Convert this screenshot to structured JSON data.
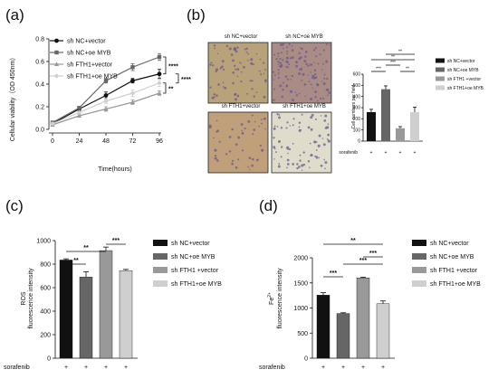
{
  "panels": {
    "a": "(a)",
    "b": "(b)",
    "c": "(c)",
    "d": "(d)"
  },
  "colors": {
    "sh_nc_vector": "#111111",
    "sh_nc_oe_myb": "#666666",
    "sh_fth1_vector": "#999999",
    "sh_fth1_oe_myb": "#cfcfcf",
    "micro_bg_a": "#b7a27a",
    "micro_bg_b": "#a98c86",
    "micro_bg_c": "#bfa07a",
    "micro_bg_d": "#dfdccc",
    "micro_dots": "#6a5a8a"
  },
  "chart_data": [
    {
      "panel": "a",
      "type": "line",
      "xlabel": "Time(hours)",
      "ylabel": "Cellular viability（OD 450nm）",
      "x": [
        0,
        24,
        48,
        72,
        96
      ],
      "xticks": [
        "0",
        "24",
        "48",
        "72",
        "96"
      ],
      "ylim": [
        0,
        0.8
      ],
      "yticks": [
        "0.0",
        "0.2",
        "0.4",
        "0.6",
        "0.8"
      ],
      "series": [
        {
          "name": "sh NC+vector",
          "values": [
            0.05,
            0.18,
            0.3,
            0.43,
            0.49
          ],
          "err": [
            0.01,
            0.02,
            0.03,
            0.02,
            0.04
          ],
          "marker": "circle"
        },
        {
          "name": "sh NC+oe MYB",
          "values": [
            0.06,
            0.19,
            0.43,
            0.55,
            0.64
          ],
          "err": [
            0.01,
            0.01,
            0.02,
            0.03,
            0.03
          ],
          "marker": "square"
        },
        {
          "name": "sh FTH1+vector",
          "values": [
            0.04,
            0.12,
            0.18,
            0.24,
            0.32
          ],
          "err": [
            0.01,
            0.01,
            0.02,
            0.02,
            0.02
          ],
          "marker": "triangle"
        },
        {
          "name": "sh FTH1+oe MYB",
          "values": [
            0.05,
            0.15,
            0.25,
            0.32,
            0.41
          ],
          "err": [
            0.01,
            0.01,
            0.02,
            0.03,
            0.03
          ],
          "marker": "diamond"
        }
      ],
      "significance": [
        "****",
        "**",
        "****"
      ]
    },
    {
      "panel": "b",
      "type": "bar",
      "ylabel": "Cell numbers per field",
      "categories": [
        "+",
        "+",
        "+",
        "+"
      ],
      "row_label": "sorafenib",
      "ylim": [
        0,
        600
      ],
      "yticks": [
        "0",
        "100",
        "200",
        "300",
        "400",
        "500",
        "600"
      ],
      "series": [
        {
          "name": "sh NC+vector",
          "value": 260,
          "err": 25
        },
        {
          "name": "sh NC+oe MYB",
          "value": 465,
          "err": 30
        },
        {
          "name": "sh FTH1 +vector",
          "value": 115,
          "err": 15
        },
        {
          "name": "sh FTH1+oe MYB",
          "value": 260,
          "err": 45
        }
      ],
      "significance": [
        "***",
        "**",
        "***",
        "**",
        "**"
      ],
      "micrographs": [
        "sh NC+vector",
        "sh NC+oe MYB",
        "sh FTH1+vector",
        "sh FTH1+oe MYB"
      ]
    },
    {
      "panel": "c",
      "type": "bar",
      "ylabel": "ROS\nfluorescence intensity",
      "categories": [
        "+",
        "+",
        "+",
        "+"
      ],
      "row_label": "sorafenib",
      "ylim": [
        0,
        1000
      ],
      "yticks": [
        "0",
        "200",
        "400",
        "600",
        "800",
        "1000"
      ],
      "series": [
        {
          "name": "sh NC+vector",
          "value": 835,
          "err": 10
        },
        {
          "name": "sh NC+oe MYB",
          "value": 690,
          "err": 45
        },
        {
          "name": "sh FTH1 +vector",
          "value": 915,
          "err": 30
        },
        {
          "name": "sh FTH1+oe MYB",
          "value": 745,
          "err": 10
        }
      ],
      "significance": [
        "**",
        "**",
        "***"
      ]
    },
    {
      "panel": "d",
      "type": "bar",
      "ylabel": "Fe2+\nfluorescence intensity",
      "categories": [
        "+",
        "+",
        "+",
        "+"
      ],
      "row_label": "sorafenib",
      "ylim": [
        0,
        2000
      ],
      "yticks": [
        "0",
        "500",
        "1000",
        "1500",
        "2000"
      ],
      "series": [
        {
          "name": "sh NC+vector",
          "value": 1255,
          "err": 50
        },
        {
          "name": "sh NC+oe MYB",
          "value": 890,
          "err": 15
        },
        {
          "name": "sh FTH1 +vector",
          "value": 1600,
          "err": 15
        },
        {
          "name": "sh FTH1+oe MYB",
          "value": 1085,
          "err": 55
        }
      ],
      "significance": [
        "***",
        "***",
        "**",
        "***"
      ]
    }
  ]
}
